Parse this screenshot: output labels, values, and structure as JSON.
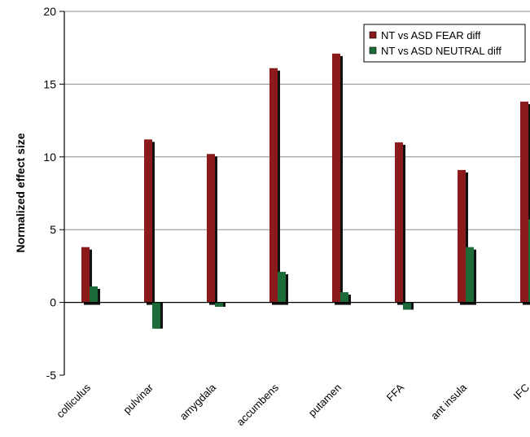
{
  "chart_data": {
    "type": "bar",
    "title": "",
    "xlabel": "",
    "ylabel": "Normalized effect size",
    "ylim": [
      -5,
      20
    ],
    "yticks": [
      -5,
      0,
      5,
      10,
      15,
      20
    ],
    "grid": true,
    "legend_position": "top-right",
    "categories": [
      "colliculus",
      "pulvinar",
      "amygdala",
      "accumbens",
      "putamen",
      "FFA",
      "ant insula",
      "IFC"
    ],
    "series": [
      {
        "name": "NT vs ASD FEAR diff",
        "color": "#8b1a1a",
        "values": [
          3.8,
          11.2,
          10.2,
          16.1,
          17.1,
          11.0,
          9.1,
          13.8
        ]
      },
      {
        "name": "NT vs ASD NEUTRAL diff",
        "color": "#1e6b3a",
        "values": [
          1.1,
          -1.8,
          -0.3,
          2.1,
          0.7,
          -0.5,
          3.8,
          5.7
        ]
      }
    ]
  }
}
